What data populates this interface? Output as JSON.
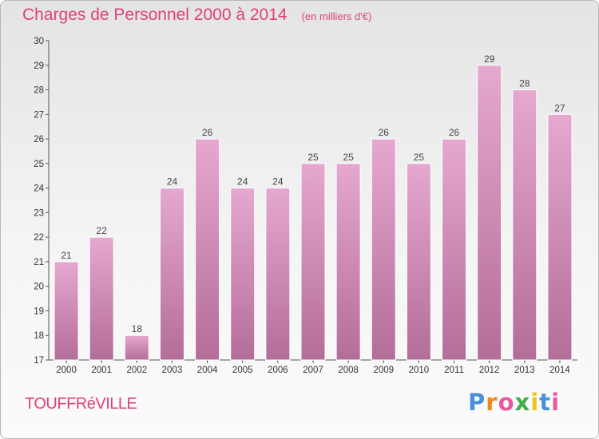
{
  "chart_data": {
    "type": "bar",
    "title": "Charges de Personnel 2000 à 2014",
    "subtitle": "(en milliers d'€)",
    "categories": [
      "2000",
      "2001",
      "2002",
      "2003",
      "2004",
      "2005",
      "2006",
      "2007",
      "2008",
      "2009",
      "2010",
      "2011",
      "2012",
      "2013",
      "2014"
    ],
    "values": [
      21,
      22,
      18,
      24,
      26,
      24,
      24,
      25,
      25,
      26,
      25,
      26,
      29,
      28,
      27
    ],
    "ylim": [
      17,
      30
    ],
    "yticks": [
      17,
      18,
      19,
      20,
      21,
      22,
      23,
      24,
      25,
      26,
      27,
      28,
      29,
      30
    ],
    "xlabel": "",
    "ylabel": "",
    "grid": false,
    "bar_color_top": "#e6a8cf",
    "bar_color_bottom": "#b36d99"
  },
  "footer": {
    "town": "TOUFFRéVILLE",
    "logo": "Proxiti",
    "logo_colors": [
      "#4a90d9",
      "#f08a1c",
      "#e85aa0",
      "#3fae49",
      "#f0c419",
      "#4a90d9",
      "#e85aa0"
    ]
  }
}
